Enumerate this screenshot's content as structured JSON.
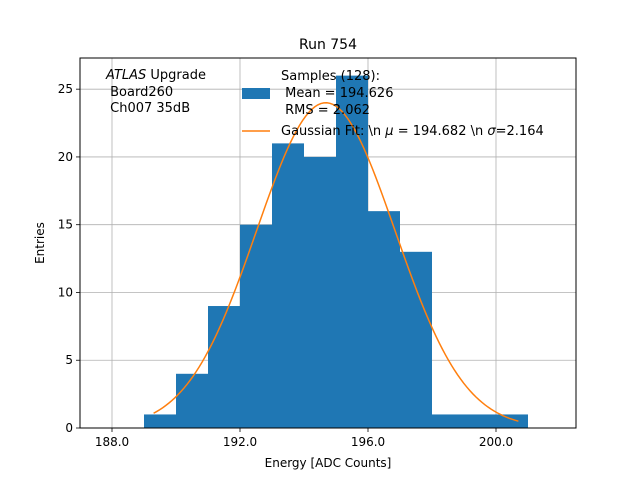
{
  "chart_data": {
    "type": "bar",
    "title": "Run 754",
    "xlabel": "Energy [ADC Counts]",
    "ylabel": "Entries",
    "xlim": [
      187.0,
      202.5
    ],
    "ylim": [
      0,
      27.3
    ],
    "x_ticks": [
      188.0,
      192.0,
      196.0,
      200.0
    ],
    "x_tick_labels": [
      "188.0",
      "192.0",
      "196.0",
      "200.0"
    ],
    "y_ticks": [
      0,
      5,
      10,
      15,
      20,
      25
    ],
    "y_tick_labels": [
      "0",
      "5",
      "10",
      "15",
      "20",
      "25"
    ],
    "grid": true,
    "legend_placement": "top-right",
    "histogram": {
      "name": "Samples (128):\n Mean = 194.626\n RMS = 2.062",
      "color": "#1f77b4",
      "bins": [
        {
          "x0": 189.0,
          "x1": 190.0,
          "count": 1
        },
        {
          "x0": 190.0,
          "x1": 191.0,
          "count": 4
        },
        {
          "x0": 191.0,
          "x1": 192.0,
          "count": 9
        },
        {
          "x0": 192.0,
          "x1": 193.0,
          "count": 15
        },
        {
          "x0": 193.0,
          "x1": 194.0,
          "count": 21
        },
        {
          "x0": 194.0,
          "x1": 195.0,
          "count": 20
        },
        {
          "x0": 195.0,
          "x1": 196.0,
          "count": 26
        },
        {
          "x0": 196.0,
          "x1": 197.0,
          "count": 16
        },
        {
          "x0": 197.0,
          "x1": 198.0,
          "count": 13
        },
        {
          "x0": 198.0,
          "x1": 199.0,
          "count": 1
        },
        {
          "x0": 199.0,
          "x1": 200.0,
          "count": 1
        },
        {
          "x0": 200.0,
          "x1": 201.0,
          "count": 1
        }
      ]
    },
    "fit": {
      "name": "Gaussian Fit: \\n μ = 194.682 \\n σ=2.164",
      "color": "#ff7f0e",
      "mu": 194.682,
      "sigma": 2.164,
      "amplitude": 24.0,
      "x_range": [
        189.3,
        200.7
      ]
    },
    "annotation": {
      "atlas": "ATLAS",
      "upgrade": " Upgrade",
      "board": " Board260",
      "channel": " Ch007 35dB"
    },
    "legend": {
      "samples_line1": "Samples (128):",
      "samples_line2": " Mean = 194.626",
      "samples_line3": " RMS = 2.062",
      "fit_prefix": "Gaussian Fit: \\n ",
      "fit_mu": "μ",
      "fit_mid": " = 194.682 \\n ",
      "fit_sigma": "σ",
      "fit_suffix": "=2.164"
    }
  }
}
